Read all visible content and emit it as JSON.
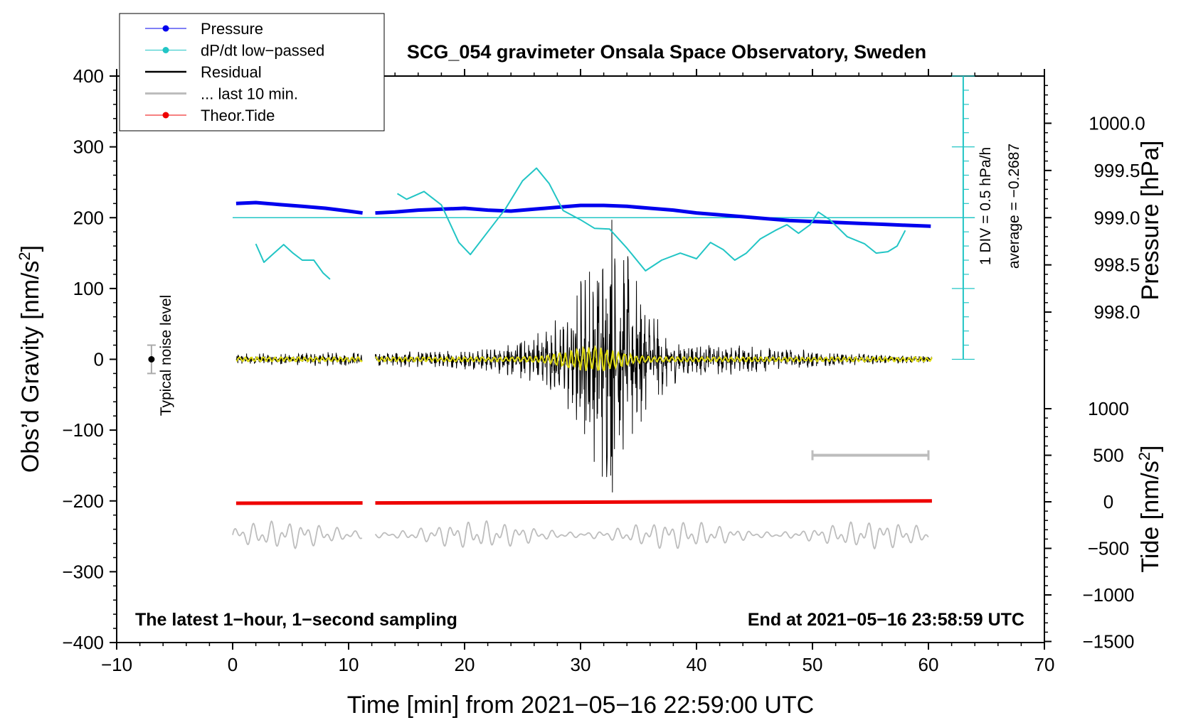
{
  "chart_data": {
    "type": "line",
    "title": "SCG_054 gravimeter Onsala Space Observatory, Sweden",
    "xlabel": "Time [min] from 2021−05−16 22:59:00 UTC",
    "ylabel": "Obs’d Gravity [nm/s",
    "ylabel_sup": "2",
    "ylabel_end": "]",
    "ylabel_right_pressure": "Pressure [hPa]",
    "ylabel_right_tide": "Tide [nm/s",
    "ylabel_right_tide_sup": "2",
    "ylabel_right_tide_end": "]",
    "xlim": [
      -10,
      70
    ],
    "ylim": [
      -400,
      400
    ],
    "pressure_lim": [
      997.5,
      1000.5
    ],
    "tide_lim": [
      -1500,
      1500
    ],
    "x_ticks": [
      "−10",
      "0",
      "10",
      "20",
      "30",
      "40",
      "50",
      "60",
      "70"
    ],
    "y_ticks": [
      "400",
      "300",
      "200",
      "100",
      "0",
      "−100",
      "−200",
      "−300",
      "−400"
    ],
    "pressure_ticks": [
      "1000.0",
      "999.5",
      "999.0",
      "998.5",
      "998.0"
    ],
    "tide_ticks": [
      "1000",
      "500",
      "0",
      "−500",
      "−1000",
      "−1500"
    ],
    "legend": {
      "position": "top-left",
      "entries": [
        {
          "label": "Pressure",
          "color": "#0000ee",
          "marker": true
        },
        {
          "label": "dP/dt low−passed",
          "color": "#22c5c5",
          "marker": true
        },
        {
          "label": "Residual",
          "color": "#000000",
          "marker": false
        },
        {
          "label": "... last 10 min.",
          "color": "#bdbdbd",
          "marker": false
        },
        {
          "label": "Theor.Tide",
          "color": "#ee0000",
          "marker": true
        }
      ]
    },
    "annotations": {
      "bottom_left": "The latest 1−hour, 1−second sampling",
      "bottom_right": "End at 2021−05−16 23:58:59 UTC",
      "noise_label": "Typical noise level",
      "dpdt_scale": "1 DIV = 0.5 hPa/h",
      "dpdt_average": "average = −0.2687"
    },
    "noise_level": {
      "x": -7,
      "y": 0,
      "err": 20
    },
    "data_gap": [
      11.2,
      12.3
    ],
    "series": [
      {
        "name": "Pressure",
        "axis": "pressure",
        "color": "#0000ee",
        "x": [
          0.3,
          2,
          4,
          6,
          8,
          10,
          11.2,
          12.3,
          14,
          16,
          18,
          20,
          22,
          24,
          26,
          28,
          30,
          32,
          34,
          36,
          38,
          40,
          42,
          44,
          46,
          48,
          50,
          52,
          54,
          56,
          58,
          60.2
        ],
        "y": [
          999.15,
          999.16,
          999.14,
          999.12,
          999.1,
          999.07,
          999.05,
          999.05,
          999.06,
          999.08,
          999.09,
          999.1,
          999.08,
          999.07,
          999.09,
          999.11,
          999.13,
          999.13,
          999.12,
          999.1,
          999.08,
          999.05,
          999.03,
          999.01,
          998.99,
          998.97,
          998.96,
          998.95,
          998.94,
          998.93,
          998.92,
          998.91
        ]
      },
      {
        "name": "dP/dt low−passed",
        "axis": "gravity",
        "color": "#22c5c5",
        "x": [
          2,
          2.7,
          3.5,
          4.4,
          5.2,
          6,
          7,
          7.8,
          8.4,
          14.2,
          15,
          16.5,
          18,
          19.5,
          20.5,
          22,
          23.5,
          25,
          26.2,
          27.3,
          28.5,
          30,
          31.2,
          32.5,
          34,
          35.6,
          37,
          38.6,
          40,
          41.2,
          42.3,
          43.3,
          44.3,
          45.5,
          46.8,
          47.8,
          48.8,
          49.8,
          50.5,
          51.5,
          53,
          54.5,
          55.5,
          56.5,
          57.3,
          58
        ],
        "y": [
          163,
          137,
          149,
          162,
          150,
          140,
          140,
          122,
          113,
          234,
          226,
          237,
          218,
          165,
          148,
          180,
          212,
          252,
          270,
          248,
          210,
          197,
          185,
          184,
          157,
          125,
          140,
          150,
          142,
          165,
          155,
          140,
          150,
          170,
          182,
          190,
          178,
          190,
          208,
          197,
          173,
          163,
          150,
          152,
          160,
          182
        ]
      },
      {
        "name": "Residual",
        "axis": "gravity",
        "color": "#000000",
        "x_range": [
          0.3,
          60.3
        ],
        "peak": {
          "x": 32.7,
          "max": 197,
          "min": -188
        }
      },
      {
        "name": "... last 10 min.",
        "axis": "gravity",
        "color": "#bdbdbd",
        "x_range": [
          0,
          60
        ],
        "baseline": -248,
        "note": "offset display of residual over last 10 min",
        "span_marker": {
          "x": [
            50,
            60
          ],
          "tide_value": 500
        }
      },
      {
        "name": "Theor.Tide",
        "axis": "tide",
        "color": "#ee0000",
        "x": [
          0.3,
          11.2,
          12.3,
          60.3
        ],
        "y": [
          -15,
          -12,
          -12,
          10
        ]
      }
    ]
  }
}
